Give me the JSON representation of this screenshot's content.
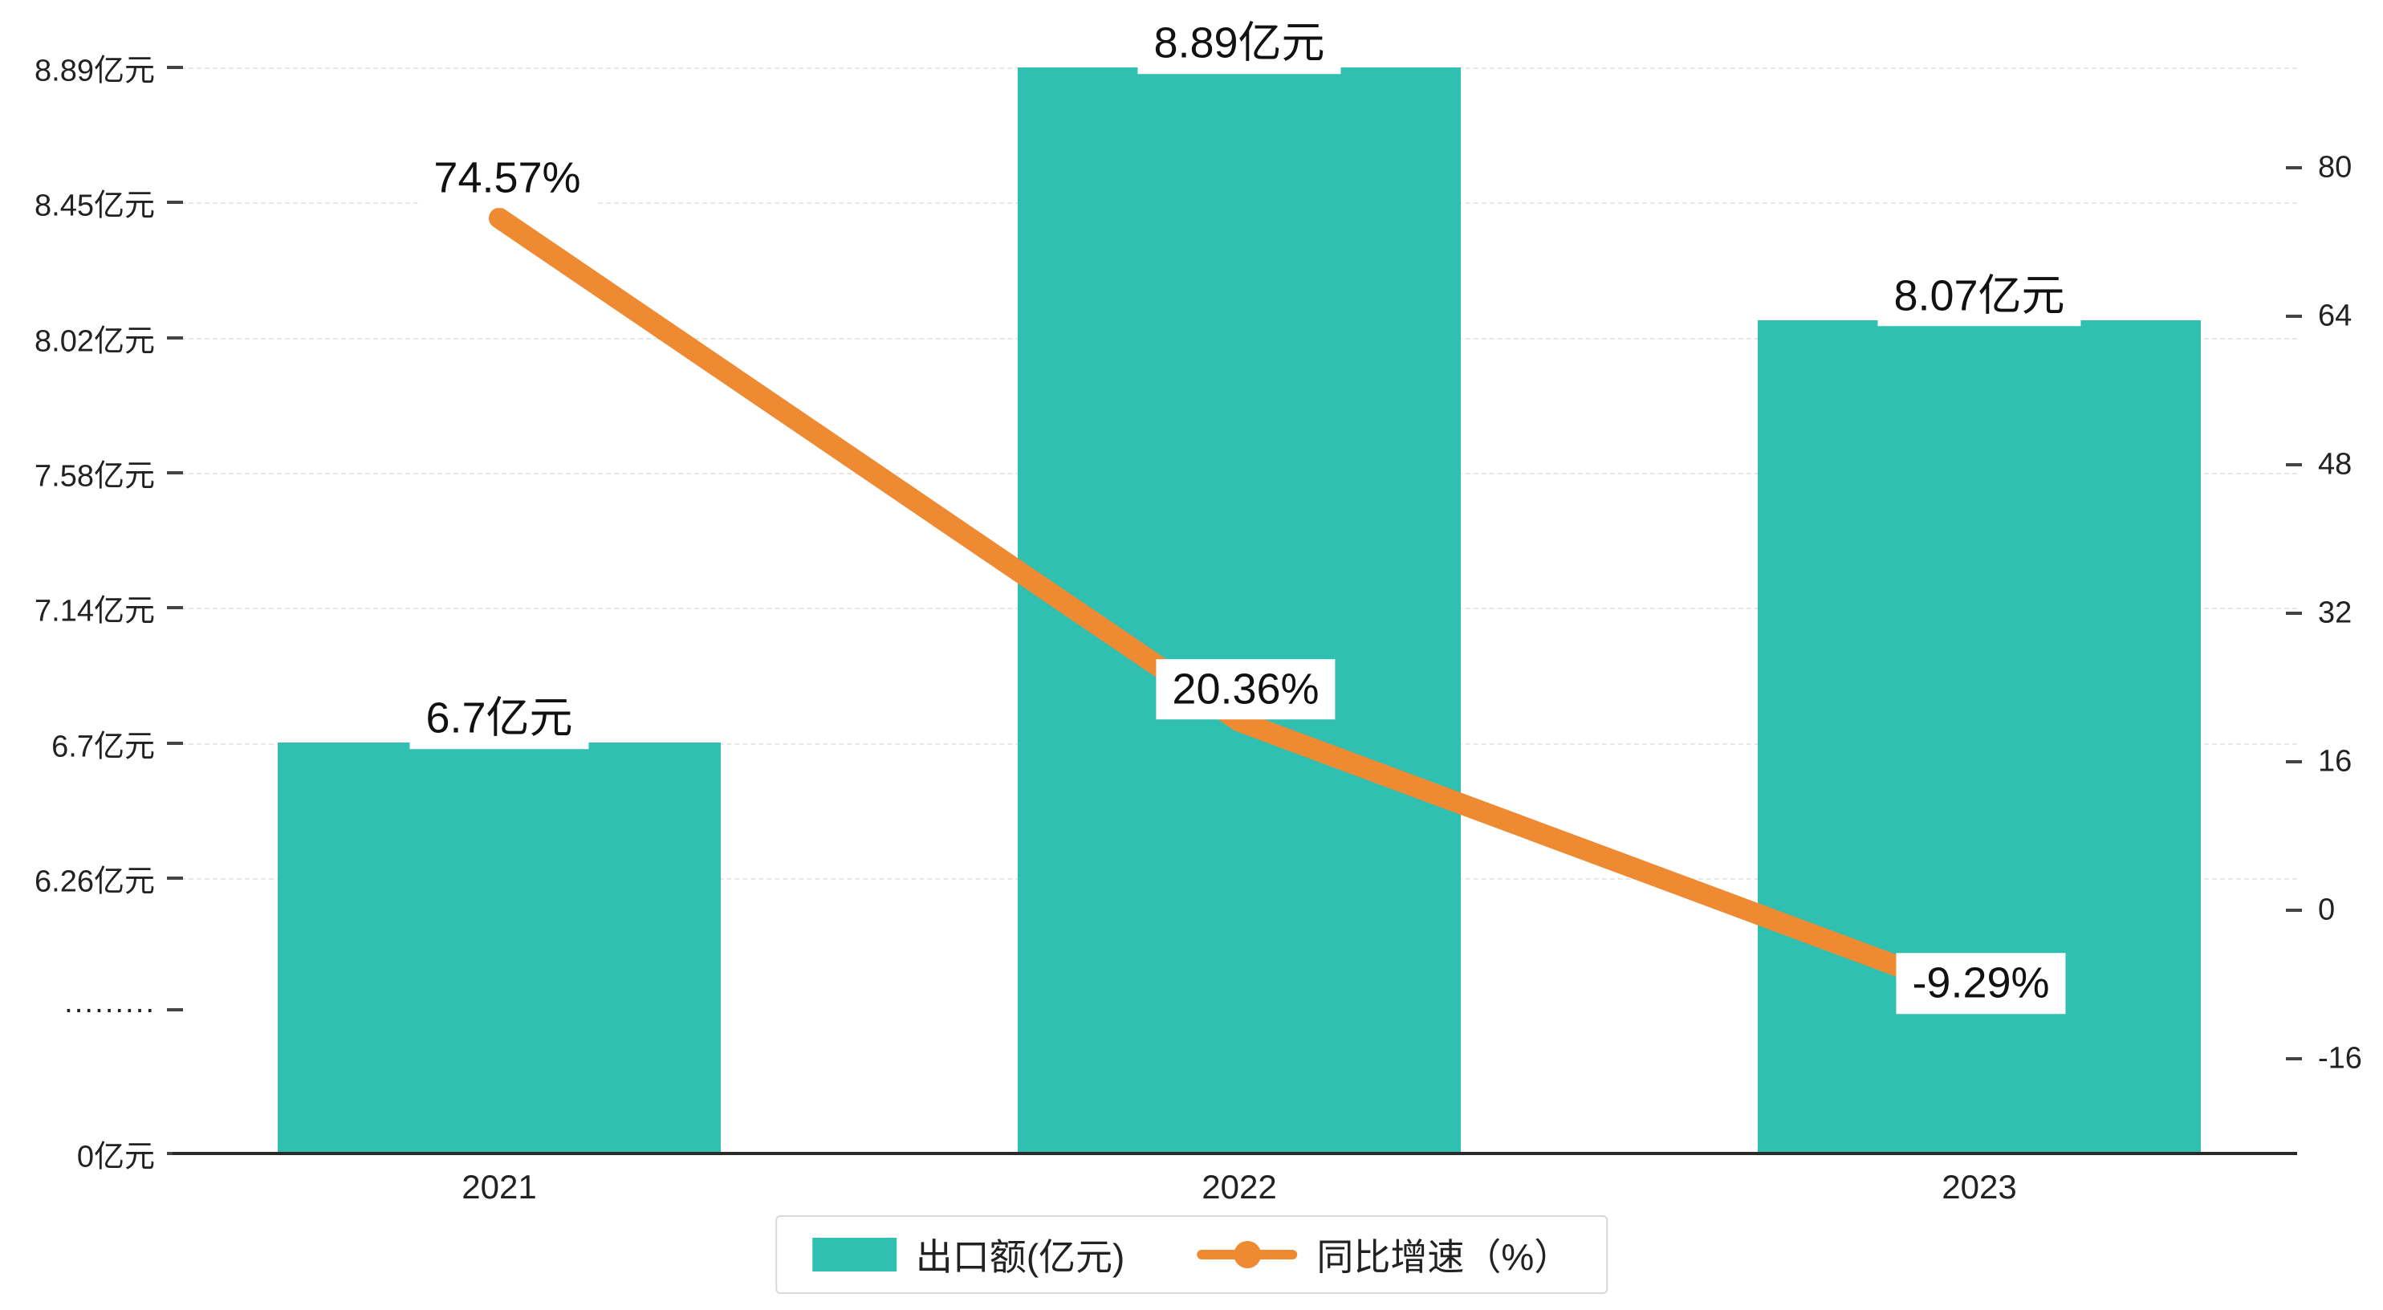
{
  "chart_data": {
    "type": "bar",
    "combo": "bar+line",
    "title": "",
    "categories": [
      "2021",
      "2022",
      "2023"
    ],
    "series": [
      {
        "name": "出口额(亿元)",
        "type": "bar",
        "unit": "亿元",
        "values": [
          6.7,
          8.89,
          8.07
        ],
        "data_labels": [
          "6.7亿元",
          "8.89亿元",
          "8.07亿元"
        ],
        "color": "#2fc0b1"
      },
      {
        "name": "同比增速（%）",
        "type": "line",
        "unit": "%",
        "values": [
          74.57,
          20.36,
          -9.29
        ],
        "data_labels": [
          "74.57%",
          "20.36%",
          "-9.29%"
        ],
        "color": "#ee8a31"
      }
    ],
    "left_axis": {
      "tick_labels": [
        "8.89亿元",
        "8.45亿元",
        "8.02亿元",
        "7.58亿元",
        "7.14亿元",
        "6.7亿元",
        "6.26亿元",
        "·········",
        "0亿元"
      ],
      "tick_values": [
        8.89,
        8.45,
        8.02,
        7.58,
        7.14,
        6.7,
        6.26,
        null,
        0
      ],
      "axis_break": true,
      "range_top": 8.89,
      "range_bottom": 0
    },
    "right_axis": {
      "tick_labels": [
        "80",
        "64",
        "48",
        "32",
        "16",
        "0",
        "-16"
      ],
      "tick_values": [
        80,
        64,
        48,
        32,
        16,
        0,
        -16
      ],
      "range": [
        -16,
        80
      ]
    },
    "layout_hints": {
      "legend_position": "bottom-center",
      "grid": "dashed-horizontal",
      "pct_label_anchor": [
        "above",
        "above",
        "below"
      ],
      "background": "#ffffff"
    }
  },
  "legend": {
    "items": [
      {
        "label": "出口额(亿元)"
      },
      {
        "label": "同比增速（%）"
      }
    ]
  }
}
